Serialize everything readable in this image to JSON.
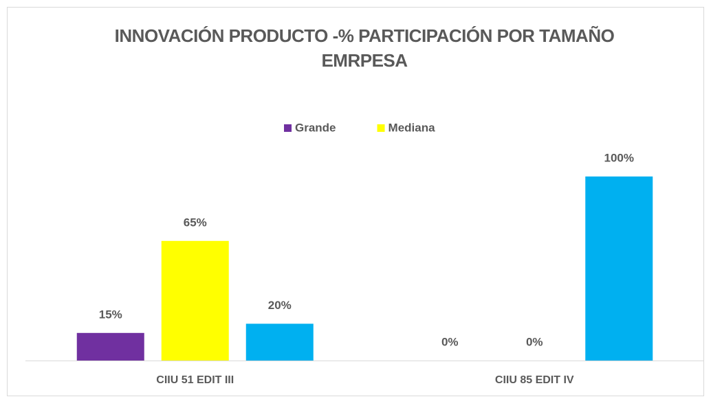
{
  "chart_data": {
    "type": "bar",
    "title": "INNOVACIÓN PRODUCTO -% PARTICIPACIÓN POR TAMAÑO EMRPESA",
    "categories": [
      "CIIU 51 EDIT III",
      "CIIU 85 EDIT IV"
    ],
    "series": [
      {
        "name": "Grande",
        "color": "#7030a0",
        "values": [
          15,
          0
        ],
        "value_labels": [
          "15%",
          "0%"
        ]
      },
      {
        "name": "Mediana",
        "color": "#ffff00",
        "values": [
          65,
          0
        ],
        "value_labels": [
          "65%",
          "0%"
        ]
      },
      {
        "color": "#00b0f0",
        "values": [
          20,
          100
        ],
        "value_labels": [
          "20%",
          "100%"
        ]
      }
    ],
    "ylim": [
      0,
      100
    ],
    "legend": "top"
  }
}
